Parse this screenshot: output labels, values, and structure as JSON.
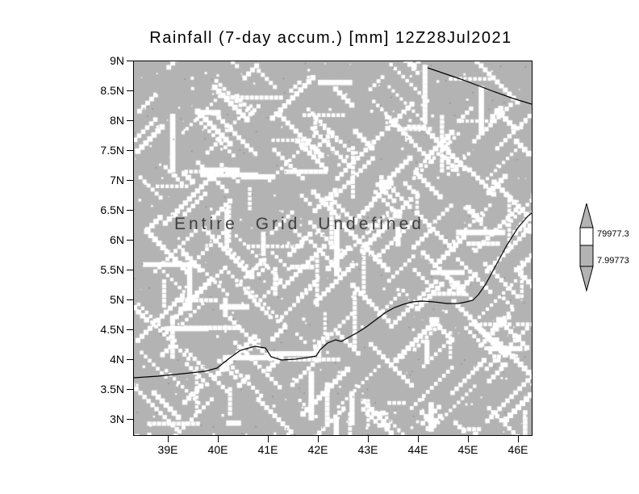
{
  "chart_data": {
    "type": "heatmap",
    "title": "Rainfall (7-day accum.) [mm] 12Z28Jul2021",
    "annotation": "Entire Grid Undefined",
    "x_tick_labels": [
      "39E",
      "40E",
      "41E",
      "42E",
      "43E",
      "44E",
      "45E",
      "46E"
    ],
    "y_tick_labels": [
      "9N",
      "8.5N",
      "8N",
      "7.5N",
      "7N",
      "6.5N",
      "6N",
      "5.5N",
      "5N",
      "4.5N",
      "4N",
      "3.5N",
      "3N"
    ],
    "x_range_deg_east": [
      38.3,
      46.3
    ],
    "y_range_deg_north": [
      2.7,
      9.0
    ],
    "values": "none plotted - entire grid undefined; field shown as gray background with white undefined-data stipple and map coastlines",
    "grid": false,
    "field_color": "#b3b3b3",
    "stipple_color": "#ffffff",
    "colorbar": {
      "position": "right",
      "labels": [
        "79977.3",
        "7.99773"
      ],
      "segment_colors": [
        "#b3b3b3",
        "#ffffff",
        "#b3b3b3",
        "#b3b3b3"
      ]
    }
  }
}
